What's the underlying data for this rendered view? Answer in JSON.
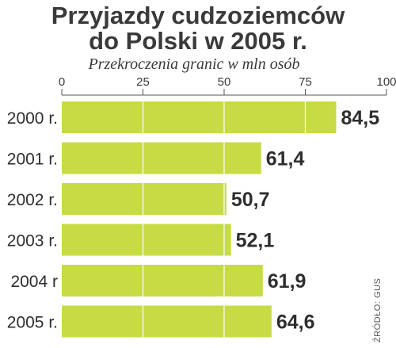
{
  "colors": {
    "bar": "#c6db44",
    "text": "#2e2e2e",
    "axis": "#555555",
    "grid": "#ffffff"
  },
  "chart_data": {
    "type": "bar",
    "orientation": "horizontal",
    "title_line1": "Przyjazdy cudzoziemców",
    "title_line2": "do Polski w 2005 r.",
    "subtitle": "Przekroczenia granic w mln osób",
    "source": "ŹRÓDŁO: GUS",
    "categories": [
      "2000 r.",
      "2001 r.",
      "2002 r.",
      "2003 r.",
      "2004 r",
      "2005 r."
    ],
    "values": [
      84.5,
      61.4,
      50.7,
      52.1,
      61.9,
      64.6
    ],
    "value_labels": [
      "84,5",
      "61,4",
      "50,7",
      "52,1",
      "61,9",
      "64,6"
    ],
    "xlim": [
      0,
      100
    ],
    "ticks": [
      0,
      25,
      50,
      75,
      100
    ],
    "grid": true,
    "legend": "none"
  }
}
